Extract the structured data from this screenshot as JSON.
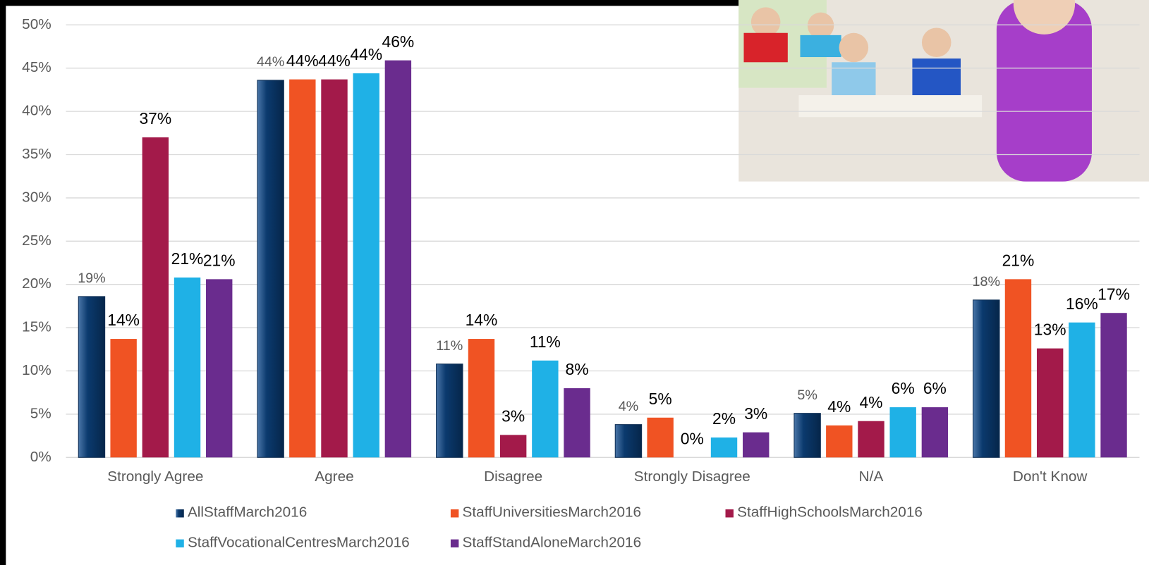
{
  "chart_data": {
    "type": "bar",
    "categories": [
      "Strongly Agree",
      "Agree",
      "Disagree",
      "Strongly Disagree",
      "N/A",
      "Don't Know"
    ],
    "series": [
      {
        "name": "AllStaffMarch2016",
        "color": "#0b3a6e",
        "values": [
          18.6,
          43.6,
          10.8,
          3.8,
          5.1,
          18.2
        ],
        "value_labels": [
          "19%",
          "44%",
          "11%",
          "4%",
          "5%",
          "18%"
        ]
      },
      {
        "name": "StaffUniversitiesMarch2016",
        "color": "#f05323",
        "values": [
          13.7,
          43.7,
          13.7,
          4.6,
          3.7,
          20.6
        ],
        "value_labels": [
          "14%",
          "44%",
          "14%",
          "5%",
          "4%",
          "21%"
        ]
      },
      {
        "name": "StaffHighSchoolsMarch2016",
        "color": "#a31a4a",
        "values": [
          37.0,
          43.7,
          2.6,
          0,
          4.2,
          12.6
        ],
        "value_labels": [
          "37%",
          "44%",
          "3%",
          "0%",
          "4%",
          "13%"
        ]
      },
      {
        "name": "StaffVocationalCentresMarch2016",
        "color": "#1fb1e6",
        "values": [
          20.8,
          44.4,
          11.2,
          2.3,
          5.8,
          15.6
        ],
        "value_labels": [
          "21%",
          "44%",
          "11%",
          "2%",
          "6%",
          "16%"
        ]
      },
      {
        "name": "StaffStandAloneMarch2016",
        "color": "#6a2c8e",
        "values": [
          20.6,
          45.9,
          8.0,
          2.9,
          5.8,
          16.7
        ],
        "value_labels": [
          "21%",
          "46%",
          "8%",
          "3%",
          "6%",
          "17%"
        ]
      }
    ],
    "ylim": [
      0,
      50
    ],
    "yticks": [
      {
        "value": 0,
        "label": "0%"
      },
      {
        "value": 5,
        "label": "5%"
      },
      {
        "value": 10,
        "label": "10%"
      },
      {
        "value": 15,
        "label": "15%"
      },
      {
        "value": 20,
        "label": "20%"
      },
      {
        "value": 25,
        "label": "25%"
      },
      {
        "value": 30,
        "label": "30%"
      },
      {
        "value": 35,
        "label": "35%"
      },
      {
        "value": 40,
        "label": "40%"
      },
      {
        "value": 45,
        "label": "45%"
      },
      {
        "value": 50,
        "label": "50%"
      }
    ],
    "grid": true,
    "legend": "bottom"
  }
}
